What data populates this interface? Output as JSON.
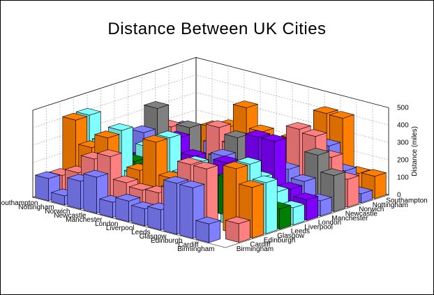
{
  "chart_data": {
    "type": "bar3d",
    "title": "Distance Between UK Cities",
    "zlabel": "Distance (miles)",
    "zlim": [
      0,
      500
    ],
    "zticks": [
      "0",
      "100",
      "200",
      "300",
      "400",
      "500"
    ],
    "grid": true,
    "cities": [
      "Birmingham",
      "Cardiff",
      "Edinburgh",
      "Glasgow",
      "Leeds",
      "Liverpool",
      "London",
      "Manchester",
      "Newcastle",
      "Norwich",
      "Nottingham",
      "Southampton"
    ],
    "city_colors": {
      "Birmingham": "#7f7fff",
      "Cardiff": "#ff8080",
      "Edinburgh": "#ff8000",
      "Glasgow": "#80ffff",
      "Leeds": "#007f00",
      "Liverpool": "#80ffff",
      "London": "#7f00ff",
      "Manchester": "#7f7fff",
      "Newcastle": "#808080",
      "Norwich": "#ff8080",
      "Nottingham": "#7f7fff",
      "Southampton": "#ff8000"
    },
    "distances": [
      [
        0,
        107,
        290,
        292,
        116,
        98,
        118,
        87,
        207,
        160,
        52,
        127
      ],
      [
        107,
        0,
        373,
        374,
        208,
        164,
        155,
        174,
        300,
        262,
        159,
        120
      ],
      [
        290,
        373,
        0,
        46,
        212,
        222,
        405,
        219,
        122,
        358,
        278,
        412
      ],
      [
        292,
        374,
        46,
        0,
        219,
        220,
        405,
        215,
        150,
        375,
        284,
        415
      ],
      [
        116,
        208,
        212,
        219,
        0,
        74,
        196,
        42,
        96,
        172,
        73,
        233
      ],
      [
        98,
        164,
        222,
        220,
        74,
        0,
        210,
        35,
        160,
        230,
        111,
        220
      ],
      [
        118,
        155,
        405,
        405,
        196,
        210,
        0,
        199,
        280,
        110,
        128,
        80
      ],
      [
        87,
        174,
        219,
        215,
        42,
        35,
        199,
        0,
        143,
        190,
        70,
        214
      ],
      [
        207,
        300,
        122,
        150,
        96,
        160,
        280,
        143,
        0,
        265,
        160,
        328
      ],
      [
        160,
        262,
        358,
        375,
        172,
        230,
        110,
        190,
        265,
        0,
        120,
        196
      ],
      [
        52,
        159,
        278,
        284,
        73,
        111,
        128,
        70,
        160,
        120,
        0,
        165
      ],
      [
        127,
        120,
        412,
        415,
        233,
        220,
        80,
        214,
        328,
        196,
        165,
        0
      ]
    ]
  }
}
